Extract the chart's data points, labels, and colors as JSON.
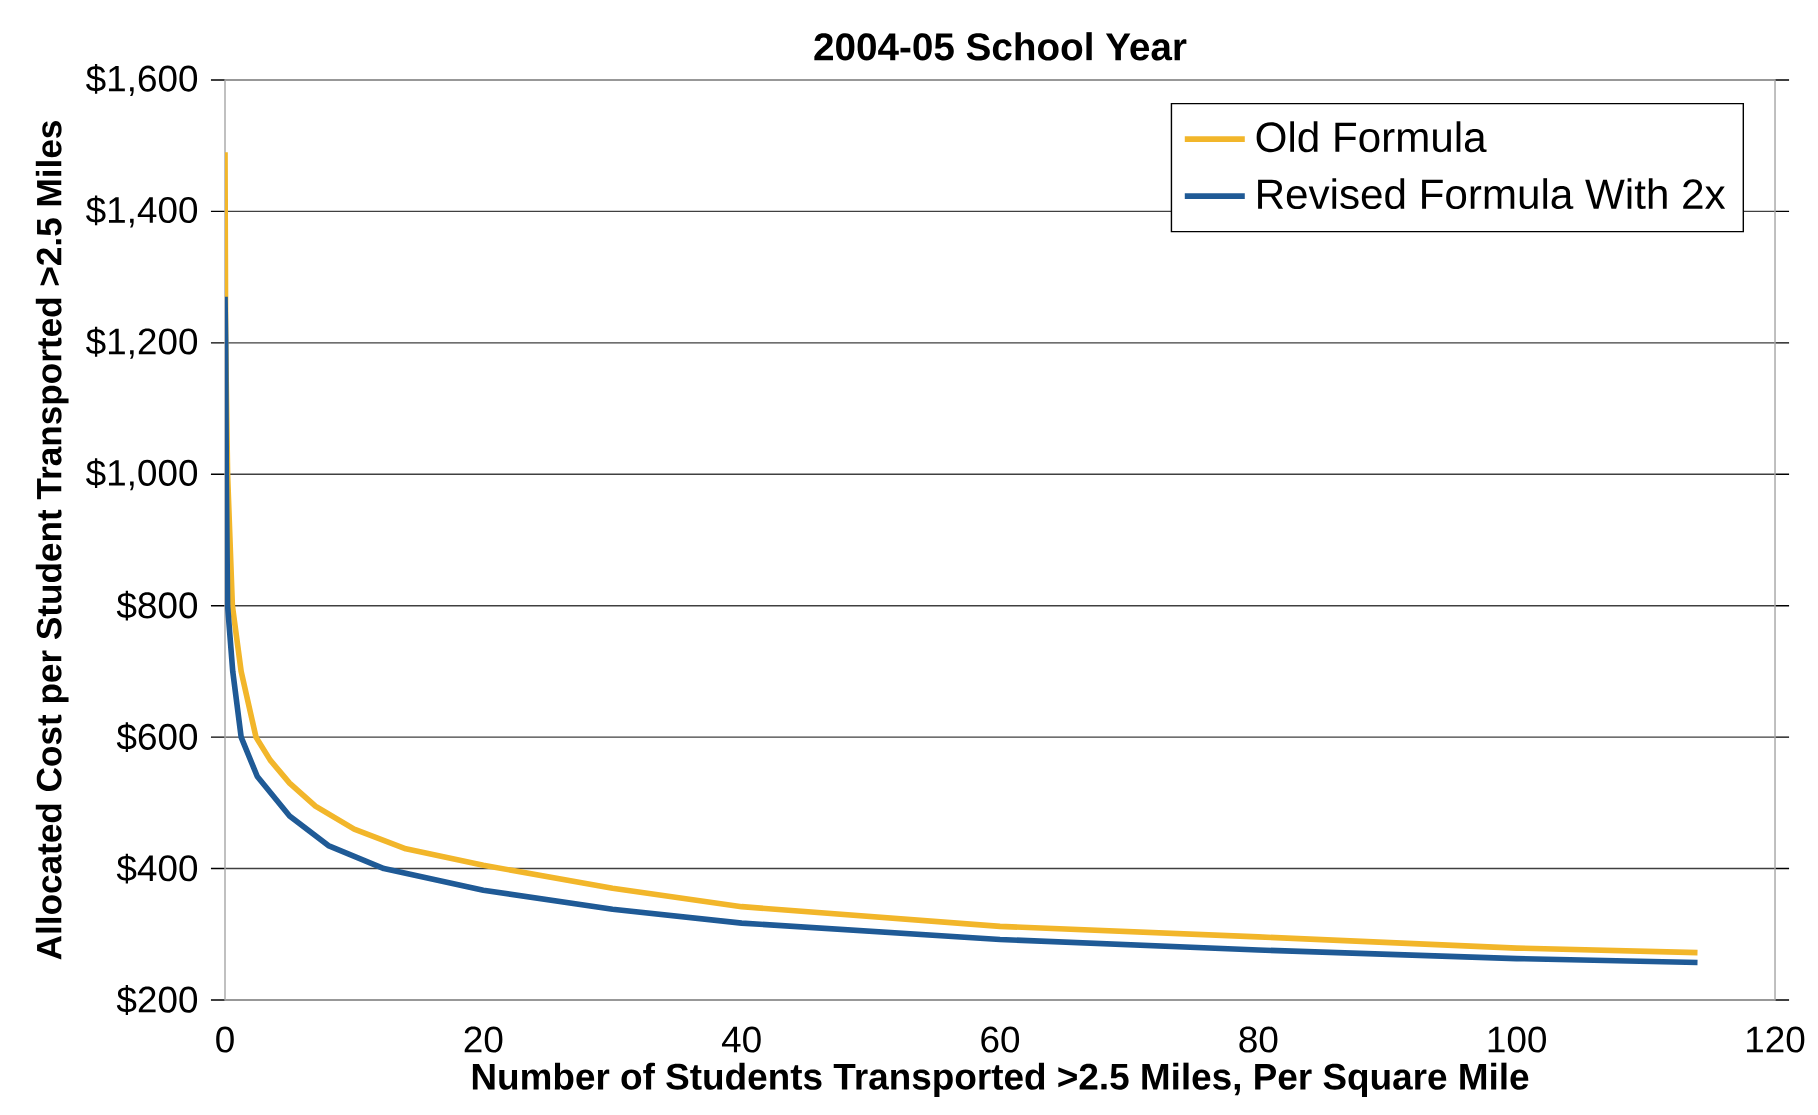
{
  "chart_data": {
    "type": "line",
    "title": "2004-05 School Year",
    "xlabel": "Number of Students Transported >2.5 Miles, Per Square Mile",
    "ylabel": "Allocated Cost per Student Transported >2.5 Miles",
    "series": [
      {
        "name": "Old Formula",
        "color": "#f2b62a",
        "x": [
          0,
          0.05,
          0.2,
          0.57,
          1.25,
          2.4,
          3.5,
          5,
          7,
          10,
          14,
          20,
          30,
          40,
          60,
          80,
          100,
          114
        ],
        "values": [
          1490,
          1200,
          1000,
          800,
          700,
          600,
          565,
          530,
          495,
          460,
          430,
          405,
          370,
          342,
          312,
          296,
          279,
          272
        ]
      },
      {
        "name": "Revised Formula With 2x",
        "color": "#1f5a96",
        "x": [
          0,
          0.05,
          0.1,
          0.2,
          0.6,
          1.25,
          2.5,
          5,
          8,
          12.3,
          20,
          30,
          40,
          60,
          80,
          100,
          114
        ],
        "values": [
          1270,
          1200,
          1000,
          800,
          700,
          600,
          540,
          480,
          435,
          400,
          367,
          338,
          317,
          292,
          276,
          263,
          257
        ]
      }
    ],
    "xlim": [
      0,
      120
    ],
    "xticks": [
      0,
      20,
      40,
      60,
      80,
      100,
      120
    ],
    "ylim": [
      200,
      1600
    ],
    "yticks": [
      {
        "value": 200,
        "label": "$200"
      },
      {
        "value": 400,
        "label": "$400"
      },
      {
        "value": 600,
        "label": "$600"
      },
      {
        "value": 800,
        "label": "$800"
      },
      {
        "value": 1000,
        "label": "$1,000"
      },
      {
        "value": 1200,
        "label": "$1,200"
      },
      {
        "value": 1400,
        "label": "$1,400"
      },
      {
        "value": 1600,
        "label": "$1,600"
      }
    ],
    "grid": "y",
    "legend": "top right",
    "marker": "none",
    "line_style": "solid"
  }
}
